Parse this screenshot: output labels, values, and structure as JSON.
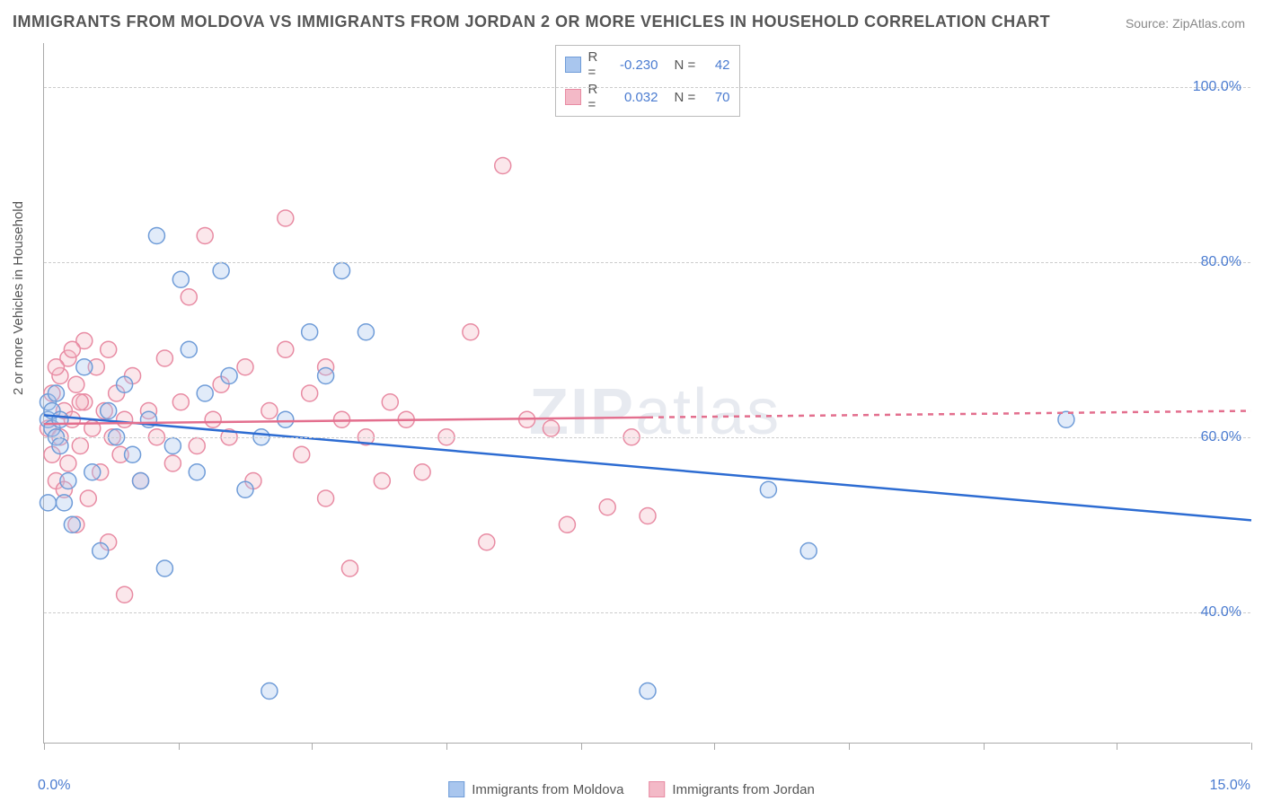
{
  "title": "IMMIGRANTS FROM MOLDOVA VS IMMIGRANTS FROM JORDAN 2 OR MORE VEHICLES IN HOUSEHOLD CORRELATION CHART",
  "source": "Source: ZipAtlas.com",
  "y_axis_title": "2 or more Vehicles in Household",
  "watermark_text_bold": "ZIP",
  "watermark_text_rest": "atlas",
  "chart": {
    "type": "scatter",
    "xlim": [
      0,
      15
    ],
    "ylim": [
      25,
      105
    ],
    "x_ticks_percent": [
      0,
      1.67,
      3.33,
      5.0,
      6.67,
      8.33,
      10.0,
      11.67,
      13.33,
      15.0
    ],
    "y_gridlines": [
      40,
      60,
      80,
      100
    ],
    "x_labels": [
      {
        "val": 0.0,
        "text": "0.0%"
      },
      {
        "val": 15.0,
        "text": "15.0%"
      }
    ],
    "y_labels": [
      {
        "val": 40,
        "text": "40.0%"
      },
      {
        "val": 60,
        "text": "60.0%"
      },
      {
        "val": 80,
        "text": "80.0%"
      },
      {
        "val": 100,
        "text": "100.0%"
      }
    ],
    "background_color": "#ffffff",
    "grid_color": "#cccccc",
    "marker_radius": 9,
    "marker_stroke_width": 1.5,
    "marker_fill_opacity": 0.35,
    "line_width": 2.5,
    "series": [
      {
        "name": "Immigrants from Moldova",
        "color_fill": "#a9c6ee",
        "color_stroke": "#6f9cd8",
        "line_color": "#2d6cd2",
        "r_value": "-0.230",
        "n_value": "42",
        "trend": {
          "x1": 0,
          "y1": 62.5,
          "x2": 15,
          "y2": 50.5,
          "dash": false
        },
        "points": [
          [
            0.05,
            62
          ],
          [
            0.05,
            64
          ],
          [
            0.1,
            61
          ],
          [
            0.1,
            63
          ],
          [
            0.15,
            60
          ],
          [
            0.15,
            65
          ],
          [
            0.2,
            59
          ],
          [
            0.2,
            62
          ],
          [
            0.25,
            52.5
          ],
          [
            0.3,
            55
          ],
          [
            0.35,
            50
          ],
          [
            0.5,
            68
          ],
          [
            0.6,
            56
          ],
          [
            0.7,
            47
          ],
          [
            0.8,
            63
          ],
          [
            0.9,
            60
          ],
          [
            1.0,
            66
          ],
          [
            1.1,
            58
          ],
          [
            1.2,
            55
          ],
          [
            1.3,
            62
          ],
          [
            1.4,
            83
          ],
          [
            1.5,
            45
          ],
          [
            1.6,
            59
          ],
          [
            1.7,
            78
          ],
          [
            1.8,
            70
          ],
          [
            1.9,
            56
          ],
          [
            2.0,
            65
          ],
          [
            2.2,
            79
          ],
          [
            2.3,
            67
          ],
          [
            2.5,
            54
          ],
          [
            2.7,
            60
          ],
          [
            2.8,
            31
          ],
          [
            3.0,
            62
          ],
          [
            3.3,
            72
          ],
          [
            3.5,
            67
          ],
          [
            3.7,
            79
          ],
          [
            4.0,
            72
          ],
          [
            7.5,
            31
          ],
          [
            9.0,
            54
          ],
          [
            9.5,
            47
          ],
          [
            12.7,
            62
          ],
          [
            0.05,
            52.5
          ]
        ]
      },
      {
        "name": "Immigrants from Jordan",
        "color_fill": "#f3b9c7",
        "color_stroke": "#e88ba3",
        "line_color": "#e36f8e",
        "r_value": "0.032",
        "n_value": "70",
        "trend": {
          "x1": 0,
          "y1": 61.5,
          "x2": 15,
          "y2": 63,
          "dash_after": 7.5
        },
        "points": [
          [
            0.05,
            61
          ],
          [
            0.1,
            58
          ],
          [
            0.1,
            65
          ],
          [
            0.15,
            55
          ],
          [
            0.2,
            60
          ],
          [
            0.2,
            67
          ],
          [
            0.25,
            63
          ],
          [
            0.3,
            57
          ],
          [
            0.3,
            69
          ],
          [
            0.35,
            62
          ],
          [
            0.4,
            50
          ],
          [
            0.4,
            66
          ],
          [
            0.45,
            59
          ],
          [
            0.5,
            64
          ],
          [
            0.5,
            71
          ],
          [
            0.55,
            53
          ],
          [
            0.6,
            61
          ],
          [
            0.65,
            68
          ],
          [
            0.7,
            56
          ],
          [
            0.75,
            63
          ],
          [
            0.8,
            48
          ],
          [
            0.8,
            70
          ],
          [
            0.85,
            60
          ],
          [
            0.9,
            65
          ],
          [
            0.95,
            58
          ],
          [
            1.0,
            62
          ],
          [
            1.0,
            42
          ],
          [
            1.1,
            67
          ],
          [
            1.2,
            55
          ],
          [
            1.3,
            63
          ],
          [
            1.4,
            60
          ],
          [
            1.5,
            69
          ],
          [
            1.6,
            57
          ],
          [
            1.7,
            64
          ],
          [
            1.8,
            76
          ],
          [
            1.9,
            59
          ],
          [
            2.0,
            83
          ],
          [
            2.1,
            62
          ],
          [
            2.2,
            66
          ],
          [
            2.3,
            60
          ],
          [
            2.5,
            68
          ],
          [
            2.6,
            55
          ],
          [
            2.8,
            63
          ],
          [
            3.0,
            85
          ],
          [
            3.0,
            70
          ],
          [
            3.2,
            58
          ],
          [
            3.3,
            65
          ],
          [
            3.5,
            53
          ],
          [
            3.5,
            68
          ],
          [
            3.7,
            62
          ],
          [
            3.8,
            45
          ],
          [
            4.0,
            60
          ],
          [
            4.2,
            55
          ],
          [
            4.3,
            64
          ],
          [
            4.5,
            62
          ],
          [
            4.7,
            56
          ],
          [
            5.0,
            60
          ],
          [
            5.3,
            72
          ],
          [
            5.5,
            48
          ],
          [
            5.7,
            91
          ],
          [
            6.0,
            62
          ],
          [
            6.3,
            61
          ],
          [
            6.5,
            50
          ],
          [
            7.0,
            52
          ],
          [
            7.3,
            60
          ],
          [
            7.5,
            51
          ],
          [
            0.15,
            68
          ],
          [
            0.25,
            54
          ],
          [
            0.35,
            70
          ],
          [
            0.45,
            64
          ]
        ]
      }
    ]
  },
  "legend_bottom": [
    {
      "label": "Immigrants from Moldova",
      "fill": "#a9c6ee",
      "stroke": "#6f9cd8"
    },
    {
      "label": "Immigrants from Jordan",
      "fill": "#f3b9c7",
      "stroke": "#e88ba3"
    }
  ]
}
